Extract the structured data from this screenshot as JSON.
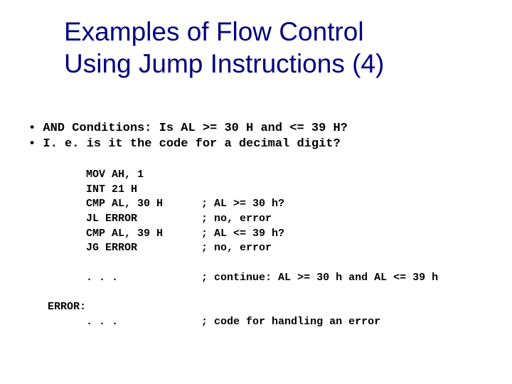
{
  "colors": {
    "title": "#000080",
    "body": "#000000",
    "background": "#ffffff"
  },
  "title": {
    "line1": "Examples of Flow Control",
    "line2": "Using Jump Instructions (4)"
  },
  "bullets": {
    "line1": "AND Conditions:  Is AL >= 30 H and <= 39 H?",
    "line2": "I. e. is it the code for a decimal digit?"
  },
  "code": {
    "text": "         MOV AH, 1\n         INT 21 H\n         CMP AL, 30 H      ; AL >= 30 h?\n         JL ERROR          ; no, error\n         CMP AL, 39 H      ; AL <= 39 h?\n         JG ERROR          ; no, error\n\n         . . .             ; continue: AL >= 30 h and AL <= 39 h\n\n   ERROR:\n         . . .             ; code for handling an error"
  }
}
